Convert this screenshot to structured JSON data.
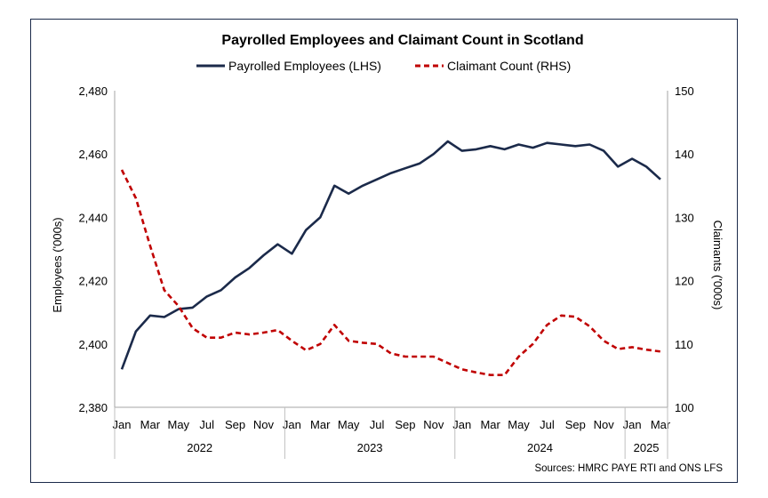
{
  "chart_data": {
    "type": "line",
    "title": "Payrolled Employees and Claimant Count in Scotland",
    "ylabel": "Employees ('000s)",
    "y2label": "Claimants ('000s)",
    "ylim": [
      2380,
      2480
    ],
    "y2lim": [
      100,
      150
    ],
    "yticks": [
      "2,380",
      "2,400",
      "2,420",
      "2,440",
      "2,460",
      "2,480"
    ],
    "y2ticks": [
      "100",
      "110",
      "120",
      "130",
      "140",
      "150"
    ],
    "month_ticks": [
      "Jan",
      "Mar",
      "May",
      "Jul",
      "Sep",
      "Nov",
      "Jan",
      "Mar",
      "May",
      "Jul",
      "Sep",
      "Nov",
      "Jan",
      "Mar",
      "May",
      "Jul",
      "Sep",
      "Nov",
      "Jan",
      "Mar"
    ],
    "years": [
      "2022",
      "2023",
      "2024",
      "2025"
    ],
    "legend_position": "top",
    "grid": false,
    "x": [
      "Jan 2022",
      "Feb 2022",
      "Mar 2022",
      "Apr 2022",
      "May 2022",
      "Jun 2022",
      "Jul 2022",
      "Aug 2022",
      "Sep 2022",
      "Oct 2022",
      "Nov 2022",
      "Dec 2022",
      "Jan 2023",
      "Feb 2023",
      "Mar 2023",
      "Apr 2023",
      "May 2023",
      "Jun 2023",
      "Jul 2023",
      "Aug 2023",
      "Sep 2023",
      "Oct 2023",
      "Nov 2023",
      "Dec 2023",
      "Jan 2024",
      "Feb 2024",
      "Mar 2024",
      "Apr 2024",
      "May 2024",
      "Jun 2024",
      "Jul 2024",
      "Aug 2024",
      "Sep 2024",
      "Oct 2024",
      "Nov 2024",
      "Dec 2024",
      "Jan 2025",
      "Feb 2025",
      "Mar 2025"
    ],
    "series": [
      {
        "name": "Payrolled Employees (LHS)",
        "axis": "left",
        "color": "#1b2a4a",
        "style": "solid",
        "values": [
          2392,
          2404,
          2409,
          2408.5,
          2411,
          2411.5,
          2415,
          2417,
          2421,
          2424,
          2428,
          2431.5,
          2428.5,
          2436,
          2440,
          2450,
          2447.5,
          2450,
          2452,
          2454,
          2455.5,
          2457,
          2460,
          2464,
          2461,
          2461.5,
          2462.5,
          2461.5,
          2463,
          2462,
          2463.5,
          2463,
          2462.5,
          2463,
          2461,
          2456,
          2458.5,
          2456,
          2452
        ]
      },
      {
        "name": "Claimant Count (RHS)",
        "axis": "right",
        "color": "#c00000",
        "style": "dashed",
        "values": [
          137.5,
          133,
          125.5,
          118.5,
          116,
          112.5,
          111,
          111,
          111.8,
          111.5,
          111.8,
          112.2,
          110.5,
          109,
          110,
          113,
          110.5,
          110.2,
          110,
          108.5,
          108,
          108,
          108,
          107,
          106,
          105.5,
          105.1,
          105.1,
          108,
          110,
          113,
          114.5,
          114.3,
          112.8,
          110.5,
          109.2,
          109.5,
          109.1,
          108.8
        ]
      }
    ]
  },
  "source_note": "Sources: HMRC PAYE RTI and ONS LFS"
}
